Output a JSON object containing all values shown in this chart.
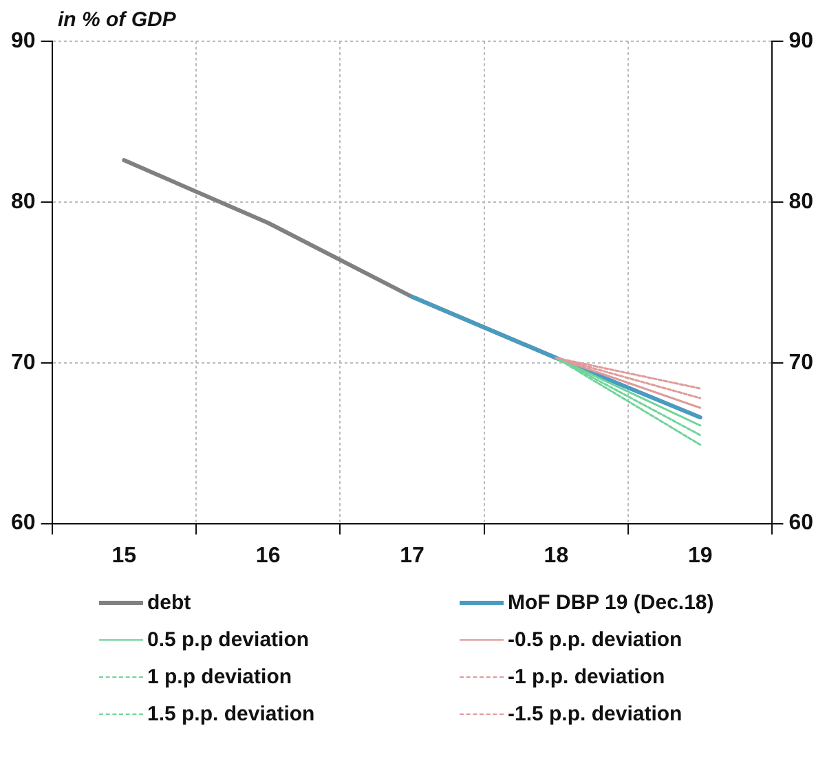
{
  "chart_data": {
    "type": "line",
    "ylabel": "in % of GDP",
    "categories": [
      "15",
      "16",
      "17",
      "18",
      "19"
    ],
    "series": [
      {
        "name": "debt",
        "color": "#808080",
        "values": [
          82.6,
          78.7,
          74.1,
          70.3,
          null
        ],
        "line_style": "solid"
      },
      {
        "name": "MoF DBP 19 (Dec.18)",
        "color": "#4a9bc0",
        "values": [
          null,
          null,
          74.1,
          70.3,
          66.6
        ],
        "line_style": "solid"
      },
      {
        "name": "0.5 p.p deviation",
        "color": "#6fd49a",
        "values": [
          null,
          null,
          null,
          70.3,
          66.1
        ],
        "line_style": "solid"
      },
      {
        "name": "-0.5 p.p. deviation",
        "color": "#e09a9a",
        "values": [
          null,
          null,
          null,
          70.3,
          67.2
        ],
        "line_style": "solid"
      },
      {
        "name": "1 p.p deviation",
        "color": "#6fd49a",
        "values": [
          null,
          null,
          null,
          70.3,
          65.5
        ],
        "line_style": "dashed"
      },
      {
        "name": "-1 p.p. deviation",
        "color": "#e09a9a",
        "values": [
          null,
          null,
          null,
          70.3,
          67.8
        ],
        "line_style": "dashed"
      },
      {
        "name": "1.5 p.p. deviation",
        "color": "#6fd49a",
        "values": [
          null,
          null,
          null,
          70.3,
          64.9
        ],
        "line_style": "dashed"
      },
      {
        "name": "-1.5 p.p. deviation",
        "color": "#e09a9a",
        "values": [
          null,
          null,
          null,
          70.3,
          68.4
        ],
        "line_style": "dashed"
      }
    ],
    "ylim": [
      60,
      90
    ],
    "yticks": [
      60,
      70,
      80,
      90
    ],
    "y2lim": [
      60,
      90
    ],
    "y2ticks": [
      60,
      70,
      80,
      90
    ],
    "grid": true,
    "legend": "bottom",
    "marker": "none"
  }
}
